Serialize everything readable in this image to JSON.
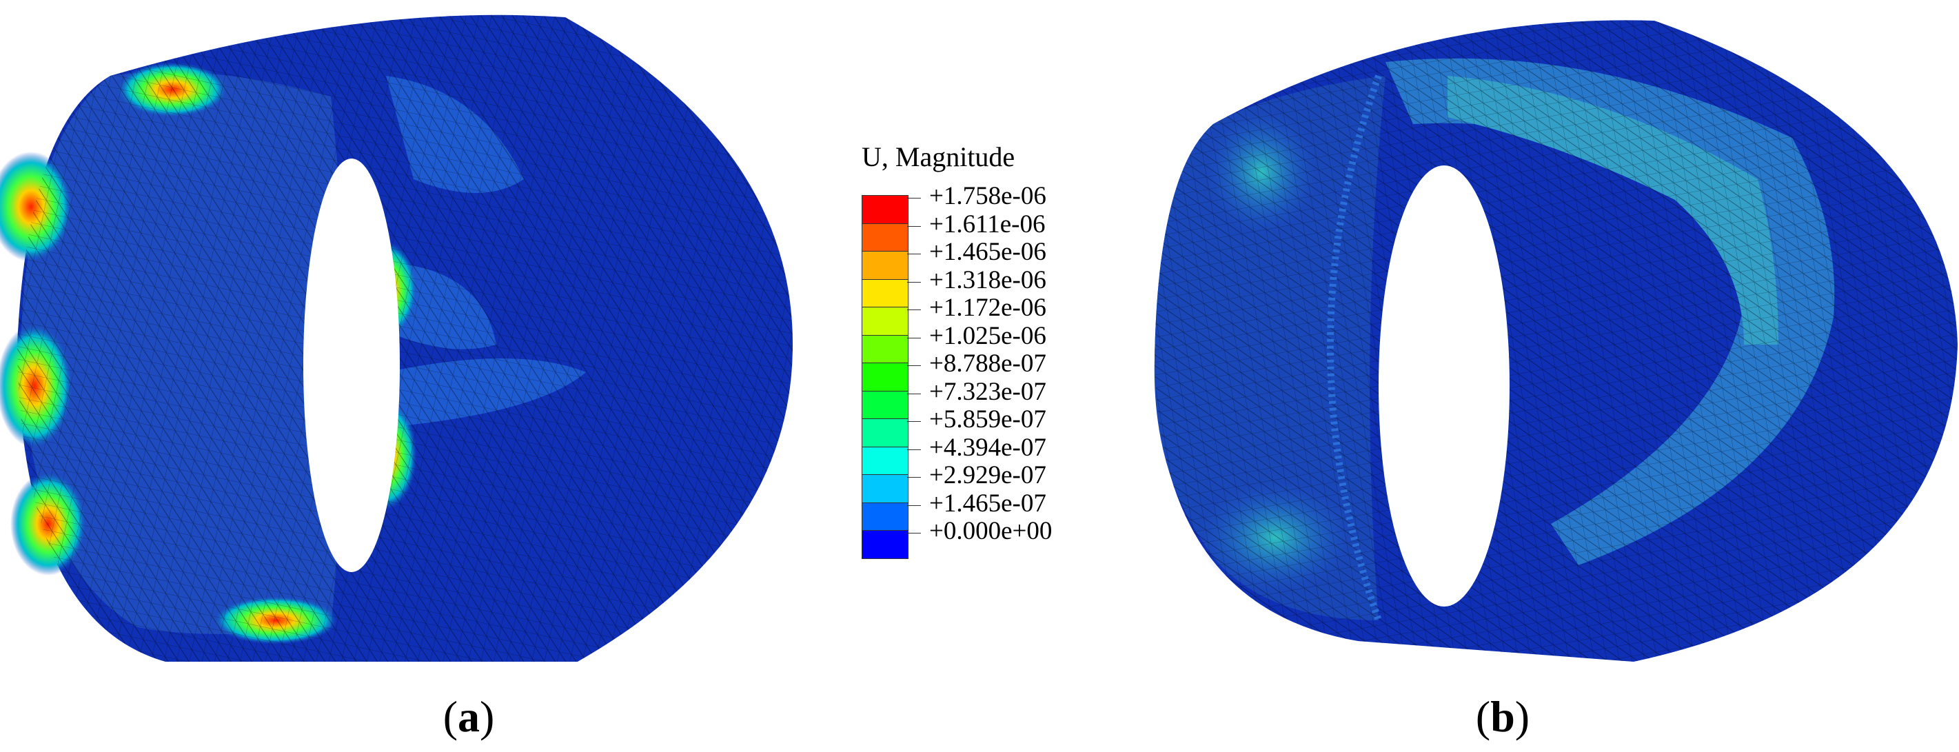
{
  "legend": {
    "title": "U, Magnitude",
    "levels": [
      {
        "label": "+1.758e-06",
        "color": "#ff0000"
      },
      {
        "label": "+1.611e-06",
        "color": "#ff5a00"
      },
      {
        "label": "+1.465e-06",
        "color": "#ffae00"
      },
      {
        "label": "+1.318e-06",
        "color": "#ffe600"
      },
      {
        "label": "+1.172e-06",
        "color": "#c8ff00"
      },
      {
        "label": "+1.025e-06",
        "color": "#6eff00"
      },
      {
        "label": "+8.788e-07",
        "color": "#19ff00"
      },
      {
        "label": "+7.323e-07",
        "color": "#00ff3c"
      },
      {
        "label": "+5.859e-07",
        "color": "#00ff9b"
      },
      {
        "label": "+4.394e-07",
        "color": "#00ffe6"
      },
      {
        "label": "+2.929e-07",
        "color": "#00c8ff"
      },
      {
        "label": "+1.465e-07",
        "color": "#0069ff"
      },
      {
        "label": "+0.000e+00",
        "color": "#0000ff"
      }
    ]
  },
  "captions": {
    "a": {
      "open": "(",
      "letter": "a",
      "close": ")"
    },
    "b": {
      "open": "(",
      "letter": "b",
      "close": ")"
    }
  },
  "colors": {
    "shell_base": "#0f2fb5",
    "shell_light": "#1e5ad0",
    "shell_mid": "#2a8ad0",
    "hotspot": "#e03010",
    "mesh": "#000000"
  }
}
